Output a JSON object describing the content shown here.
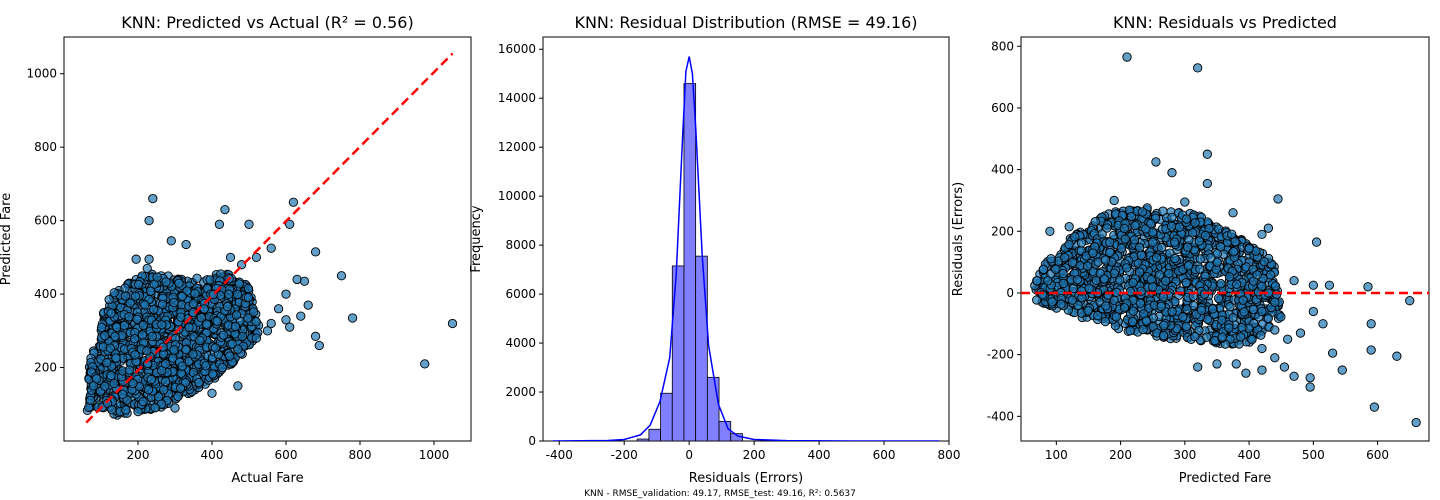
{
  "footer_text": "KNN - RMSE_validation: 49.17, RMSE_test: 49.16, R²: 0.5637",
  "colors": {
    "points": "#1f77b4",
    "points_edge": "#000000",
    "ref_line": "#ff0000",
    "hist_fill": "#7f7fff",
    "kde": "#0000ff"
  },
  "chart_data": [
    {
      "type": "scatter",
      "title": "KNN: Predicted vs Actual (R² = 0.56)",
      "xlabel": "Actual Fare",
      "ylabel": "Predicted Fare",
      "xlim": [
        0,
        1100
      ],
      "ylim": [
        0,
        1100
      ],
      "xticks": [
        200,
        400,
        600,
        800,
        1000
      ],
      "yticks": [
        200,
        400,
        600,
        800,
        1000
      ],
      "reference_line": {
        "x": [
          60,
          1050
        ],
        "y": [
          50,
          1055
        ],
        "style": "dashed",
        "color": "#ff0000"
      },
      "bulk_cloud": [
        [
          60,
          80
        ],
        [
          70,
          220
        ],
        [
          120,
          400
        ],
        [
          230,
          460
        ],
        [
          330,
          440
        ],
        [
          440,
          460
        ],
        [
          500,
          420
        ],
        [
          530,
          300
        ],
        [
          470,
          220
        ],
        [
          380,
          150
        ],
        [
          260,
          90
        ],
        [
          150,
          70
        ]
      ],
      "points": [
        [
          240,
          660
        ],
        [
          230,
          600
        ],
        [
          290,
          545
        ],
        [
          330,
          535
        ],
        [
          435,
          630
        ],
        [
          420,
          590
        ],
        [
          500,
          590
        ],
        [
          620,
          650
        ],
        [
          610,
          590
        ],
        [
          520,
          500
        ],
        [
          560,
          525
        ],
        [
          680,
          515
        ],
        [
          750,
          450
        ],
        [
          780,
          335
        ],
        [
          680,
          285
        ],
        [
          690,
          260
        ],
        [
          975,
          210
        ],
        [
          1050,
          320
        ],
        [
          630,
          440
        ],
        [
          650,
          435
        ],
        [
          600,
          400
        ],
        [
          660,
          370
        ],
        [
          600,
          330
        ],
        [
          550,
          300
        ],
        [
          520,
          280
        ],
        [
          470,
          250
        ],
        [
          400,
          130
        ],
        [
          470,
          150
        ],
        [
          300,
          90
        ],
        [
          200,
          80
        ],
        [
          230,
          495
        ],
        [
          195,
          495
        ],
        [
          225,
          470
        ],
        [
          480,
          480
        ],
        [
          450,
          500
        ],
        [
          640,
          340
        ],
        [
          610,
          310
        ],
        [
          580,
          360
        ],
        [
          560,
          320
        ]
      ]
    },
    {
      "type": "bar",
      "title": "KNN: Residual Distribution (RMSE = 49.16)",
      "xlabel": "Residuals (Errors)",
      "ylabel": "Frequency",
      "xlim": [
        -450,
        800
      ],
      "ylim": [
        0,
        16500
      ],
      "xticks": [
        -400,
        -200,
        0,
        200,
        400,
        600,
        800
      ],
      "yticks": [
        0,
        2000,
        4000,
        6000,
        8000,
        10000,
        12000,
        14000,
        16000
      ],
      "bin_edges": [
        -160,
        -124,
        -88,
        -52,
        -16,
        20,
        56,
        92,
        128,
        164
      ],
      "values": [
        80,
        480,
        1950,
        7150,
        14600,
        7550,
        2600,
        800,
        300
      ],
      "kde": {
        "x": [
          -420,
          -250,
          -200,
          -150,
          -120,
          -90,
          -60,
          -40,
          -20,
          -10,
          0,
          10,
          20,
          40,
          60,
          90,
          120,
          150,
          200,
          300,
          500,
          770
        ],
        "y": [
          0,
          20,
          60,
          250,
          650,
          1600,
          3400,
          6800,
          12500,
          15100,
          15700,
          15000,
          12800,
          7600,
          3900,
          1500,
          500,
          200,
          60,
          15,
          0,
          0
        ]
      }
    },
    {
      "type": "scatter",
      "title": "KNN: Residuals vs Predicted",
      "xlabel": "Predicted Fare",
      "ylabel": "Residuals (Errors)",
      "xlim": [
        45,
        680
      ],
      "ylim": [
        -480,
        830
      ],
      "xticks": [
        100,
        200,
        300,
        400,
        500,
        600
      ],
      "yticks": [
        -400,
        -200,
        0,
        200,
        400,
        600,
        800
      ],
      "reference_line": {
        "y": 0,
        "style": "dashed",
        "color": "#ff0000"
      },
      "bulk_cloud": [
        [
          65,
          30
        ],
        [
          70,
          -30
        ],
        [
          110,
          -60
        ],
        [
          200,
          -120
        ],
        [
          300,
          -160
        ],
        [
          400,
          -170
        ],
        [
          450,
          -80
        ],
        [
          440,
          100
        ],
        [
          400,
          160
        ],
        [
          330,
          250
        ],
        [
          250,
          280
        ],
        [
          180,
          260
        ],
        [
          110,
          160
        ],
        [
          80,
          100
        ]
      ],
      "points": [
        [
          210,
          765
        ],
        [
          320,
          730
        ],
        [
          335,
          450
        ],
        [
          255,
          425
        ],
        [
          280,
          390
        ],
        [
          335,
          355
        ],
        [
          445,
          305
        ],
        [
          505,
          165
        ],
        [
          470,
          40
        ],
        [
          500,
          25
        ],
        [
          525,
          25
        ],
        [
          585,
          20
        ],
        [
          650,
          -25
        ],
        [
          590,
          -100
        ],
        [
          590,
          -185
        ],
        [
          630,
          -205
        ],
        [
          595,
          -370
        ],
        [
          660,
          -420
        ],
        [
          545,
          -250
        ],
        [
          530,
          -195
        ],
        [
          495,
          -275
        ],
        [
          495,
          -305
        ],
        [
          470,
          -270
        ],
        [
          455,
          -240
        ],
        [
          440,
          -210
        ],
        [
          420,
          -250
        ],
        [
          395,
          -260
        ],
        [
          380,
          -230
        ],
        [
          350,
          -230
        ],
        [
          320,
          -240
        ],
        [
          515,
          -100
        ],
        [
          500,
          -60
        ],
        [
          480,
          -130
        ],
        [
          460,
          -150
        ],
        [
          440,
          -120
        ],
        [
          420,
          -180
        ],
        [
          430,
          210
        ],
        [
          420,
          190
        ],
        [
          375,
          260
        ],
        [
          300,
          295
        ],
        [
          190,
          300
        ],
        [
          120,
          215
        ],
        [
          90,
          200
        ],
        [
          420,
          -60
        ],
        [
          440,
          -30
        ]
      ]
    }
  ]
}
